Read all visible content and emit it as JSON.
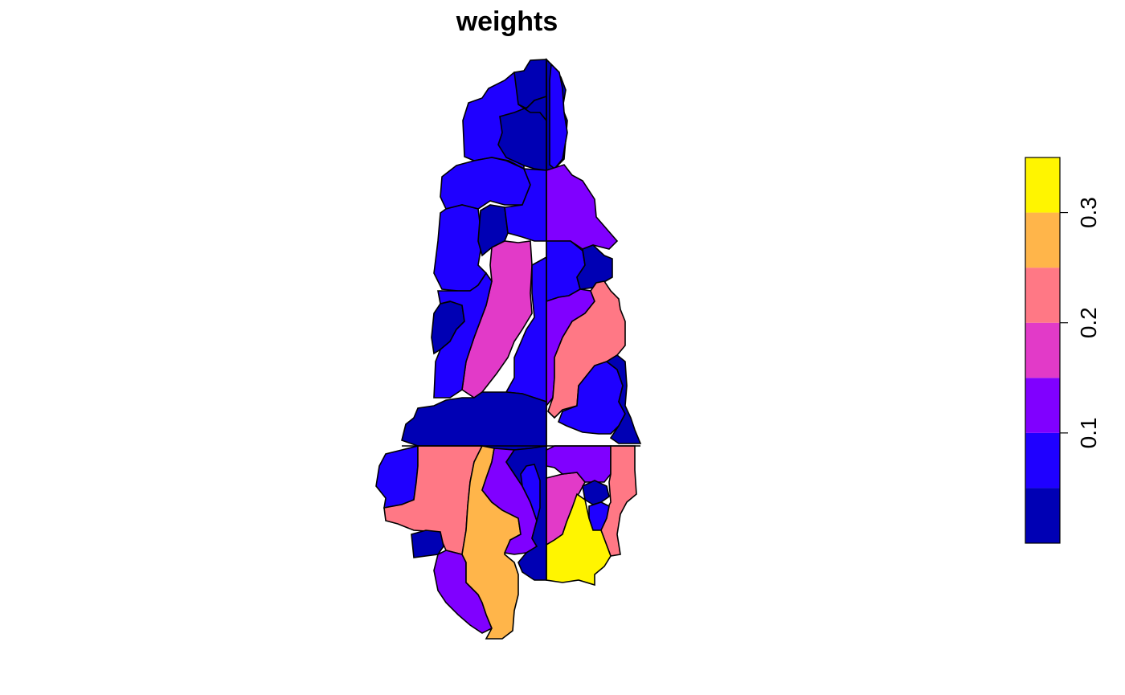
{
  "title": "weights",
  "palette": [
    "#0000B4",
    "#1F00FF",
    "#8000FF",
    "#E23AC8",
    "#FF7885",
    "#FFB54A",
    "#FFF500"
  ],
  "legend": {
    "ticks": [
      {
        "value": 0.1,
        "label": "0.1"
      },
      {
        "value": 0.2,
        "label": "0.2"
      },
      {
        "value": 0.3,
        "label": "0.3"
      }
    ],
    "range": [
      0.0,
      0.35
    ]
  },
  "regions": [
    {
      "id": "n-west-upper",
      "class": 1
    },
    {
      "id": "n-top-a",
      "class": 0
    },
    {
      "id": "n-top-b",
      "class": 0
    },
    {
      "id": "n-top-c",
      "class": 0
    },
    {
      "id": "n-right-strip",
      "class": 1
    },
    {
      "id": "n-small-1",
      "class": 0
    },
    {
      "id": "n-west-mid",
      "class": 1
    },
    {
      "id": "n-west-mid-2",
      "class": 1
    },
    {
      "id": "n-center-pocket",
      "class": 0
    },
    {
      "id": "n-center-strip",
      "class": 1
    },
    {
      "id": "ne-purple",
      "class": 2
    },
    {
      "id": "ne-blue",
      "class": 1
    },
    {
      "id": "ne-dark",
      "class": 0
    },
    {
      "id": "w-magenta",
      "class": 3
    },
    {
      "id": "w-dark-pocket",
      "class": 0
    },
    {
      "id": "w-lower-blue",
      "class": 1
    },
    {
      "id": "c-blue-strip",
      "class": 1
    },
    {
      "id": "e-purple-band",
      "class": 2
    },
    {
      "id": "e-salmon",
      "class": 4
    },
    {
      "id": "e-blue-lower",
      "class": 1
    },
    {
      "id": "e-dark-lower",
      "class": 0
    },
    {
      "id": "mid-dark-band",
      "class": 0
    },
    {
      "id": "sw-blue",
      "class": 1
    },
    {
      "id": "sw-salmon",
      "class": 4
    },
    {
      "id": "sw-dark",
      "class": 0
    },
    {
      "id": "s-purple",
      "class": 2
    },
    {
      "id": "s-orange",
      "class": 5
    },
    {
      "id": "s-purple-2",
      "class": 2
    },
    {
      "id": "s-dark-center",
      "class": 0
    },
    {
      "id": "s-blue-center",
      "class": 1
    },
    {
      "id": "se-magenta",
      "class": 3
    },
    {
      "id": "se-purple",
      "class": 2
    },
    {
      "id": "se-salmon",
      "class": 4
    },
    {
      "id": "se-dark",
      "class": 0
    },
    {
      "id": "se-blue",
      "class": 1
    },
    {
      "id": "se-yellow",
      "class": 6
    }
  ]
}
